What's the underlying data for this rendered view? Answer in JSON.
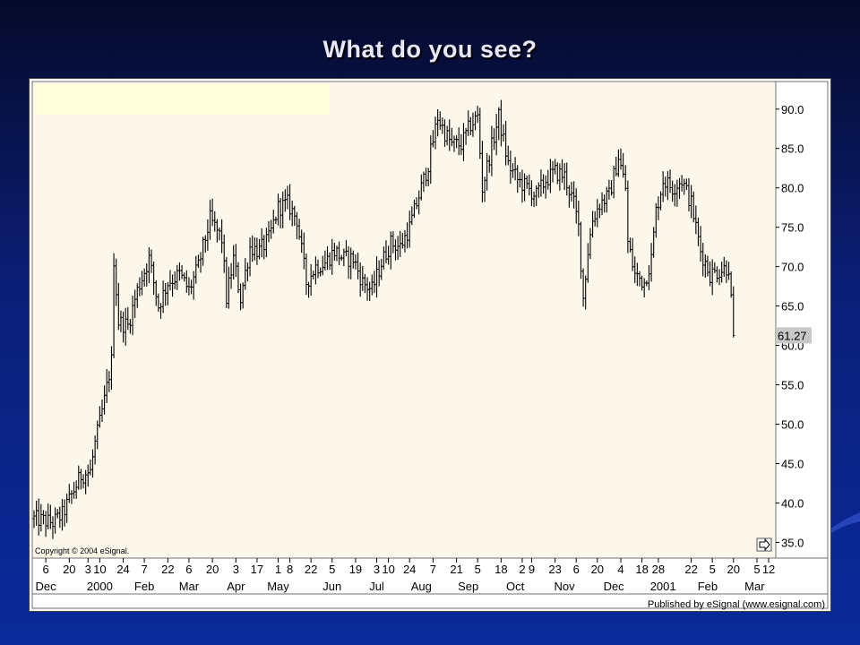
{
  "slide": {
    "title": "What do you see?"
  },
  "chart_footer": {
    "copyright": "Copyright © 2004 eSignal.",
    "publisher": "Published by eSignal (www.esignal.com)"
  },
  "colors": {
    "plot_background": "#fbf7ea",
    "bars": "#000000",
    "last_price_tag": "#c8c8c8",
    "header_mask": "#ffffdd"
  },
  "chart_data": {
    "type": "ohlc-bar",
    "title": "",
    "xlabel": "",
    "ylabel": "",
    "ylim": [
      33.0,
      93.5
    ],
    "y_axis_position": "right",
    "y_ticks": [
      35.0,
      40.0,
      45.0,
      50.0,
      55.0,
      60.0,
      65.0,
      70.0,
      75.0,
      80.0,
      85.0,
      90.0
    ],
    "y_tick_labels": [
      "35.0",
      "40.0",
      "45.0",
      "50.0",
      "55.0",
      "60.0",
      "65.0",
      "70.0",
      "75.0",
      "80.0",
      "85.0",
      "90.0"
    ],
    "last_price": 61.27,
    "last_price_label": "61.27",
    "x_day_ticks": [
      {
        "label": "6",
        "idx": 5
      },
      {
        "label": "20",
        "idx": 15
      },
      {
        "label": "3",
        "idx": 23
      },
      {
        "label": "10",
        "idx": 28
      },
      {
        "label": "24",
        "idx": 38
      },
      {
        "label": "7",
        "idx": 47
      },
      {
        "label": "22",
        "idx": 57
      },
      {
        "label": "6",
        "idx": 66
      },
      {
        "label": "20",
        "idx": 76
      },
      {
        "label": "3",
        "idx": 86
      },
      {
        "label": "17",
        "idx": 95
      },
      {
        "label": "1",
        "idx": 104
      },
      {
        "label": "8",
        "idx": 109
      },
      {
        "label": "22",
        "idx": 118
      },
      {
        "label": "5",
        "idx": 127
      },
      {
        "label": "19",
        "idx": 137
      },
      {
        "label": "3",
        "idx": 146
      },
      {
        "label": "10",
        "idx": 151
      },
      {
        "label": "24",
        "idx": 160
      },
      {
        "label": "7",
        "idx": 170
      },
      {
        "label": "21",
        "idx": 180
      },
      {
        "label": "5",
        "idx": 189
      },
      {
        "label": "18",
        "idx": 199
      },
      {
        "label": "2",
        "idx": 208
      },
      {
        "label": "9",
        "idx": 212
      },
      {
        "label": "23",
        "idx": 222
      },
      {
        "label": "6",
        "idx": 231
      },
      {
        "label": "20",
        "idx": 240
      },
      {
        "label": "4",
        "idx": 250
      },
      {
        "label": "18",
        "idx": 259
      },
      {
        "label": "28",
        "idx": 266
      },
      {
        "label": "22",
        "idx": 280
      },
      {
        "label": "5",
        "idx": 289
      },
      {
        "label": "20",
        "idx": 298
      },
      {
        "label": "5",
        "idx": 308
      },
      {
        "label": "12",
        "idx": 313
      }
    ],
    "x_month_ticks": [
      {
        "label": "Dec",
        "idx": 5
      },
      {
        "label": "2000",
        "idx": 28
      },
      {
        "label": "Feb",
        "idx": 47
      },
      {
        "label": "Mar",
        "idx": 66
      },
      {
        "label": "Apr",
        "idx": 86
      },
      {
        "label": "May",
        "idx": 104
      },
      {
        "label": "Jun",
        "idx": 127
      },
      {
        "label": "Jul",
        "idx": 146
      },
      {
        "label": "Aug",
        "idx": 165
      },
      {
        "label": "Sep",
        "idx": 185
      },
      {
        "label": "Oct",
        "idx": 205
      },
      {
        "label": "Nov",
        "idx": 226
      },
      {
        "label": "Dec",
        "idx": 247
      },
      {
        "label": "2001",
        "idx": 268
      },
      {
        "label": "Feb",
        "idx": 287
      },
      {
        "label": "Mar",
        "idx": 307
      }
    ],
    "close_anchors": [
      [
        0,
        38.0
      ],
      [
        8,
        37.5
      ],
      [
        12,
        38.5
      ],
      [
        16,
        41.0
      ],
      [
        20,
        43.5
      ],
      [
        24,
        44.0
      ],
      [
        26,
        47.5
      ],
      [
        30,
        53.0
      ],
      [
        33,
        58.0
      ],
      [
        34,
        71.0
      ],
      [
        36,
        63.0
      ],
      [
        40,
        62.5
      ],
      [
        44,
        67.0
      ],
      [
        49,
        71.0
      ],
      [
        53,
        65.0
      ],
      [
        57,
        68.0
      ],
      [
        62,
        69.0
      ],
      [
        66,
        67.0
      ],
      [
        70,
        70.0
      ],
      [
        75,
        76.0
      ],
      [
        80,
        73.5
      ],
      [
        82,
        66.0
      ],
      [
        85,
        71.0
      ],
      [
        88,
        66.0
      ],
      [
        92,
        72.5
      ],
      [
        96,
        72.0
      ],
      [
        100,
        73.5
      ],
      [
        104,
        77.5
      ],
      [
        108,
        78.0
      ],
      [
        112,
        76.0
      ],
      [
        116,
        68.0
      ],
      [
        120,
        70.0
      ],
      [
        124,
        70.5
      ],
      [
        128,
        72.0
      ],
      [
        132,
        71.0
      ],
      [
        136,
        71.0
      ],
      [
        140,
        68.0
      ],
      [
        144,
        67.0
      ],
      [
        148,
        70.5
      ],
      [
        152,
        73.0
      ],
      [
        156,
        72.5
      ],
      [
        160,
        75.0
      ],
      [
        164,
        79.0
      ],
      [
        168,
        83.0
      ],
      [
        172,
        89.0
      ],
      [
        175,
        87.0
      ],
      [
        178,
        85.5
      ],
      [
        182,
        85.5
      ],
      [
        186,
        88.0
      ],
      [
        189,
        89.0
      ],
      [
        191,
        80.0
      ],
      [
        194,
        84.0
      ],
      [
        198,
        89.0
      ],
      [
        202,
        83.0
      ],
      [
        206,
        81.0
      ],
      [
        210,
        80.0
      ],
      [
        214,
        79.0
      ],
      [
        218,
        81.0
      ],
      [
        222,
        82.0
      ],
      [
        226,
        81.5
      ],
      [
        230,
        78.0
      ],
      [
        232,
        75.0
      ],
      [
        234,
        66.0
      ],
      [
        236,
        72.0
      ],
      [
        238,
        76.0
      ],
      [
        241,
        78.0
      ],
      [
        245,
        79.0
      ],
      [
        249,
        84.0
      ],
      [
        252,
        80.0
      ],
      [
        253,
        73.0
      ],
      [
        256,
        69.0
      ],
      [
        260,
        68.0
      ],
      [
        263,
        71.0
      ],
      [
        265,
        77.0
      ],
      [
        268,
        81.0
      ],
      [
        272,
        80.0
      ],
      [
        276,
        81.0
      ],
      [
        280,
        78.0
      ],
      [
        284,
        72.0
      ],
      [
        288,
        69.0
      ],
      [
        292,
        69.5
      ],
      [
        296,
        70.0
      ],
      [
        298,
        61.3
      ]
    ]
  }
}
